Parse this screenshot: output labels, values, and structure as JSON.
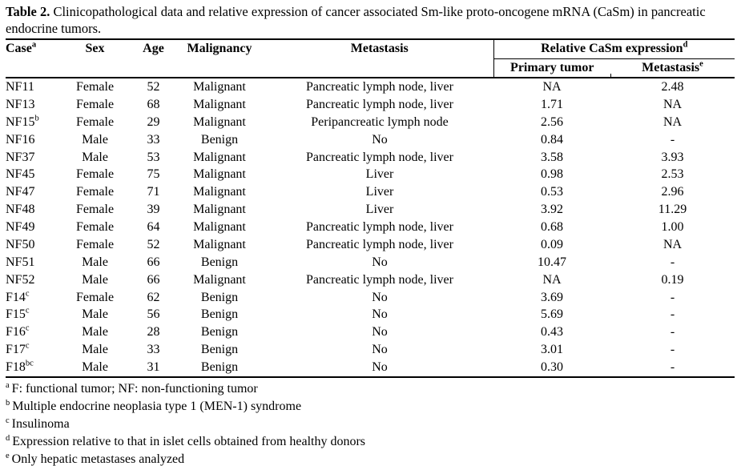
{
  "caption": {
    "prefix": "Table 2.",
    "text": " Clinicopathological data and relative expression of cancer associated Sm-like proto-oncogene mRNA (CaSm) in pancreatic endocrine tumors."
  },
  "table": {
    "columns": [
      {
        "label": "Case",
        "sup": "a"
      },
      {
        "label": "Sex",
        "sup": ""
      },
      {
        "label": "Age",
        "sup": ""
      },
      {
        "label": "Malignancy",
        "sup": ""
      },
      {
        "label": "Metastasis",
        "sup": ""
      }
    ],
    "group_header": {
      "label": "Relative CaSm expression",
      "sup": "d",
      "subcolumns": [
        {
          "label": "Primary tumor",
          "sup": ""
        },
        {
          "label": "Metastasis",
          "sup": "e"
        }
      ]
    },
    "rows": [
      {
        "case": "NF11",
        "case_sup": "",
        "sex": "Female",
        "age": "52",
        "malignancy": "Malignant",
        "metastasis": "Pancreatic lymph node, liver",
        "primary_tumor": "NA",
        "metastasis_expr": "2.48"
      },
      {
        "case": "NF13",
        "case_sup": "",
        "sex": "Female",
        "age": "68",
        "malignancy": "Malignant",
        "metastasis": "Pancreatic lymph node, liver",
        "primary_tumor": "1.71",
        "metastasis_expr": "NA"
      },
      {
        "case": "NF15",
        "case_sup": "b",
        "sex": "Female",
        "age": "29",
        "malignancy": "Malignant",
        "metastasis": "Peripancreatic lymph node",
        "primary_tumor": "2.56",
        "metastasis_expr": "NA"
      },
      {
        "case": "NF16",
        "case_sup": "",
        "sex": "Male",
        "age": "33",
        "malignancy": "Benign",
        "metastasis": "No",
        "primary_tumor": "0.84",
        "metastasis_expr": "-"
      },
      {
        "case": "NF37",
        "case_sup": "",
        "sex": "Male",
        "age": "53",
        "malignancy": "Malignant",
        "metastasis": "Pancreatic lymph node, liver",
        "primary_tumor": "3.58",
        "metastasis_expr": "3.93"
      },
      {
        "case": "NF45",
        "case_sup": "",
        "sex": "Female",
        "age": "75",
        "malignancy": "Malignant",
        "metastasis": "Liver",
        "primary_tumor": "0.98",
        "metastasis_expr": "2.53"
      },
      {
        "case": "NF47",
        "case_sup": "",
        "sex": "Female",
        "age": "71",
        "malignancy": "Malignant",
        "metastasis": "Liver",
        "primary_tumor": "0.53",
        "metastasis_expr": "2.96"
      },
      {
        "case": "NF48",
        "case_sup": "",
        "sex": "Female",
        "age": "39",
        "malignancy": "Malignant",
        "metastasis": "Liver",
        "primary_tumor": "3.92",
        "metastasis_expr": "11.29"
      },
      {
        "case": "NF49",
        "case_sup": "",
        "sex": "Female",
        "age": "64",
        "malignancy": "Malignant",
        "metastasis": "Pancreatic lymph node, liver",
        "primary_tumor": "0.68",
        "metastasis_expr": "1.00"
      },
      {
        "case": "NF50",
        "case_sup": "",
        "sex": "Female",
        "age": "52",
        "malignancy": "Malignant",
        "metastasis": "Pancreatic lymph node, liver",
        "primary_tumor": "0.09",
        "metastasis_expr": "NA"
      },
      {
        "case": "NF51",
        "case_sup": "",
        "sex": "Male",
        "age": "66",
        "malignancy": "Benign",
        "metastasis": "No",
        "primary_tumor": "10.47",
        "metastasis_expr": "-"
      },
      {
        "case": "NF52",
        "case_sup": "",
        "sex": "Male",
        "age": "66",
        "malignancy": "Malignant",
        "metastasis": "Pancreatic lymph node, liver",
        "primary_tumor": "NA",
        "metastasis_expr": "0.19"
      },
      {
        "case": "F14",
        "case_sup": "c",
        "sex": "Female",
        "age": "62",
        "malignancy": "Benign",
        "metastasis": "No",
        "primary_tumor": "3.69",
        "metastasis_expr": "-"
      },
      {
        "case": "F15",
        "case_sup": "c",
        "sex": "Male",
        "age": "56",
        "malignancy": "Benign",
        "metastasis": "No",
        "primary_tumor": "5.69",
        "metastasis_expr": "-"
      },
      {
        "case": "F16",
        "case_sup": "c",
        "sex": "Male",
        "age": "28",
        "malignancy": "Benign",
        "metastasis": "No",
        "primary_tumor": "0.43",
        "metastasis_expr": "-"
      },
      {
        "case": "F17",
        "case_sup": "c",
        "sex": "Male",
        "age": "33",
        "malignancy": "Benign",
        "metastasis": "No",
        "primary_tumor": "3.01",
        "metastasis_expr": "-"
      },
      {
        "case": "F18",
        "case_sup": "bc",
        "sex": "Male",
        "age": "31",
        "malignancy": "Benign",
        "metastasis": "No",
        "primary_tumor": "0.30",
        "metastasis_expr": "-"
      }
    ]
  },
  "footnotes": [
    {
      "marker": "a",
      "text": "F: functional tumor; NF: non-functioning tumor"
    },
    {
      "marker": "b",
      "text": "Multiple endocrine neoplasia type 1 (MEN-1) syndrome"
    },
    {
      "marker": "c",
      "text": "Insulinoma"
    },
    {
      "marker": "d",
      "text": "Expression relative to that in islet cells obtained from healthy donors"
    },
    {
      "marker": "e",
      "text": "Only hepatic metastases analyzed"
    }
  ],
  "colors": {
    "text": "#000000",
    "background": "#ffffff",
    "rule": "#000000"
  }
}
